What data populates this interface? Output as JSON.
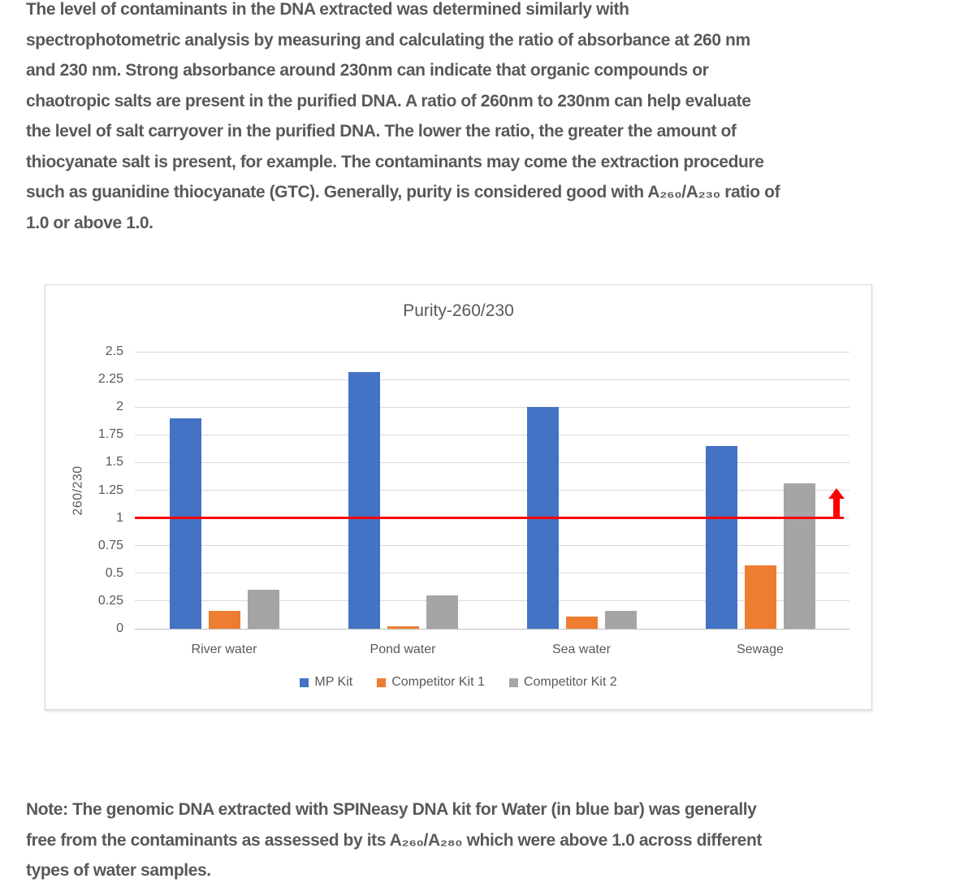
{
  "intro": {
    "text": "The level of contaminants in the DNA extracted was determined similarly with\nspectrophotometric analysis by measuring and calculating the ratio of absorbance at 260 nm\nand 230 nm. Strong absorbance around 230nm can indicate that organic compounds or\nchaotropic salts are present in the purified DNA. A ratio of 260nm to 230nm can help evaluate\nthe level of salt carryover in the purified DNA. The lower the ratio, the greater the amount of\nthiocyanate salt is present, for example. The contaminants may come the extraction procedure\nsuch as guanidine thiocyanate (GTC). Generally, purity is considered good with A₂₆₀/A₂₃₀ ratio of\n1.0 or above 1.0."
  },
  "chart_data": {
    "type": "bar",
    "title": "Purity-260/230",
    "xlabel": "",
    "ylabel": "260/230",
    "categories": [
      "River water",
      "Pond water",
      "Sea water",
      "Sewage"
    ],
    "series": [
      {
        "name": "MP Kit",
        "color": "#4472C4",
        "values": [
          1.9,
          2.32,
          2.0,
          1.65
        ]
      },
      {
        "name": "Competitor Kit 1",
        "color": "#ED7D31",
        "values": [
          0.16,
          0.02,
          0.11,
          0.57
        ]
      },
      {
        "name": "Competitor Kit 2",
        "color": "#A5A5A5",
        "values": [
          0.35,
          0.3,
          0.16,
          1.31
        ]
      }
    ],
    "ylim": [
      0,
      2.5
    ],
    "yticks": [
      "0",
      "0.25",
      "0.5",
      "0.75",
      "1",
      "1.25",
      "1.5",
      "1.75",
      "2",
      "2.25",
      "2.5"
    ],
    "grid": true,
    "legend_position": "bottom",
    "reference_line": {
      "value": 1,
      "color": "#FF0000",
      "annotation": "red up arrow at right end"
    }
  },
  "note": {
    "text": "Note: The genomic DNA extracted with SPINeasy DNA kit for Water (in blue bar) was generally\nfree from the contaminants as assessed by its A₂₆₀/A₂₈₀ which were above 1.0 across different\ntypes of water samples."
  }
}
